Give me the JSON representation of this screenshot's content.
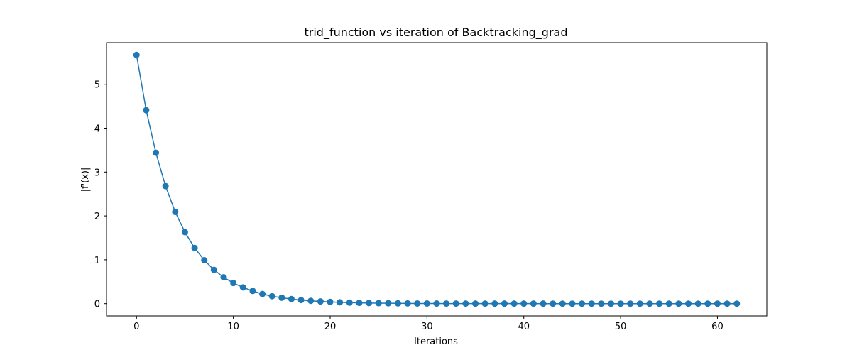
{
  "chart_data": {
    "type": "line",
    "title": "trid_function vs iteration of Backtracking_grad",
    "xlabel": "Iterations",
    "ylabel": "|f'(x)|",
    "xlim": [
      -3.1,
      65.1
    ],
    "ylim": [
      -0.28,
      5.95
    ],
    "xticks": [
      0,
      10,
      20,
      30,
      40,
      50,
      60
    ],
    "yticks": [
      0,
      1,
      2,
      3,
      4,
      5
    ],
    "grid": false,
    "series": [
      {
        "color": "#1f77b4",
        "marker": "circle",
        "x": [
          0,
          1,
          2,
          3,
          4,
          5,
          6,
          7,
          8,
          9,
          10,
          11,
          12,
          13,
          14,
          15,
          16,
          17,
          18,
          19,
          20,
          21,
          22,
          23,
          24,
          25,
          26,
          27,
          28,
          29,
          30,
          31,
          32,
          33,
          34,
          35,
          36,
          37,
          38,
          39,
          40,
          41,
          42,
          43,
          44,
          45,
          46,
          47,
          48,
          49,
          50,
          51,
          52,
          53,
          54,
          55,
          56,
          57,
          58,
          59,
          60,
          61,
          62
        ],
        "y": [
          5.67,
          4.41,
          3.44,
          2.68,
          2.09,
          1.63,
          1.27,
          0.99,
          0.77,
          0.6,
          0.47,
          0.37,
          0.29,
          0.22,
          0.17,
          0.135,
          0.105,
          0.082,
          0.064,
          0.05,
          0.039,
          0.03,
          0.023,
          0.018,
          0.014,
          0.011,
          0.0085,
          0.0066,
          0.0052,
          0.004,
          0.0031,
          0.0024,
          0.0019,
          0.0015,
          0.0012,
          0.0009,
          0.0007,
          0.00055,
          0.00043,
          0.00033,
          0.00026,
          0.0002,
          0.00016,
          0.00012,
          0.0001,
          8e-05,
          6e-05,
          5e-05,
          4e-05,
          3e-05,
          2.3e-05,
          1.8e-05,
          1.4e-05,
          1.1e-05,
          8.5e-06,
          6.6e-06,
          5.2e-06,
          4e-06,
          3.1e-06,
          2.4e-06,
          1.9e-06,
          1.5e-06,
          1.2e-06
        ]
      }
    ]
  }
}
